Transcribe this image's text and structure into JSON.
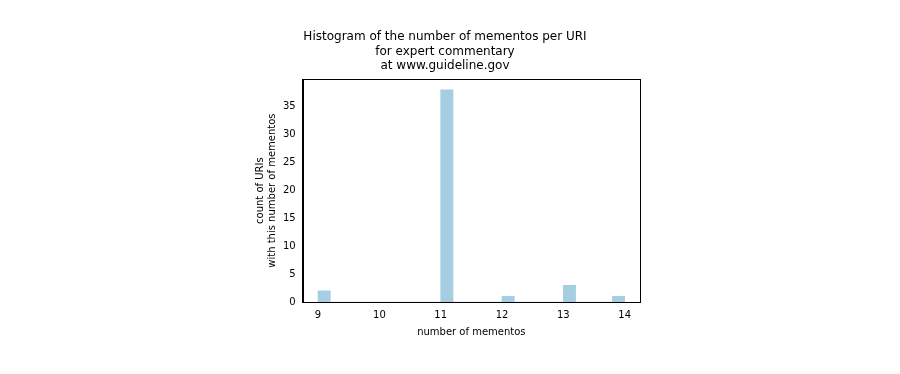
{
  "chart_data": {
    "type": "histogram",
    "title": [
      "Histogram of the number of mementos per URI",
      "for expert commentary",
      "at www.guideline.gov"
    ],
    "x_label": "number of mementos",
    "y_label": [
      "count of URIs",
      "with this number of mementos"
    ],
    "bins": [
      9,
      9.2,
      9.4,
      9.6,
      9.8,
      10,
      10.2,
      10.4,
      10.6,
      10.8,
      11,
      11.2,
      11.4,
      11.6,
      11.8,
      12,
      12.2,
      12.4,
      12.6,
      12.8,
      13,
      13.2,
      13.4,
      13.6,
      13.8,
      14
    ],
    "values": [
      2,
      0,
      0,
      0,
      0,
      0,
      0,
      0,
      0,
      0,
      38,
      0,
      0,
      0,
      0,
      1,
      0,
      0,
      0,
      0,
      3,
      0,
      0,
      0,
      1
    ],
    "color": "#a6cee3",
    "xlim": [
      8.75,
      14.25
    ],
    "xticks": [
      9,
      10,
      11,
      12,
      13,
      14
    ],
    "ylim": [
      0,
      39.9
    ],
    "yticks": [
      0,
      5,
      10,
      15,
      20,
      25,
      30,
      35
    ],
    "grid": false
  }
}
